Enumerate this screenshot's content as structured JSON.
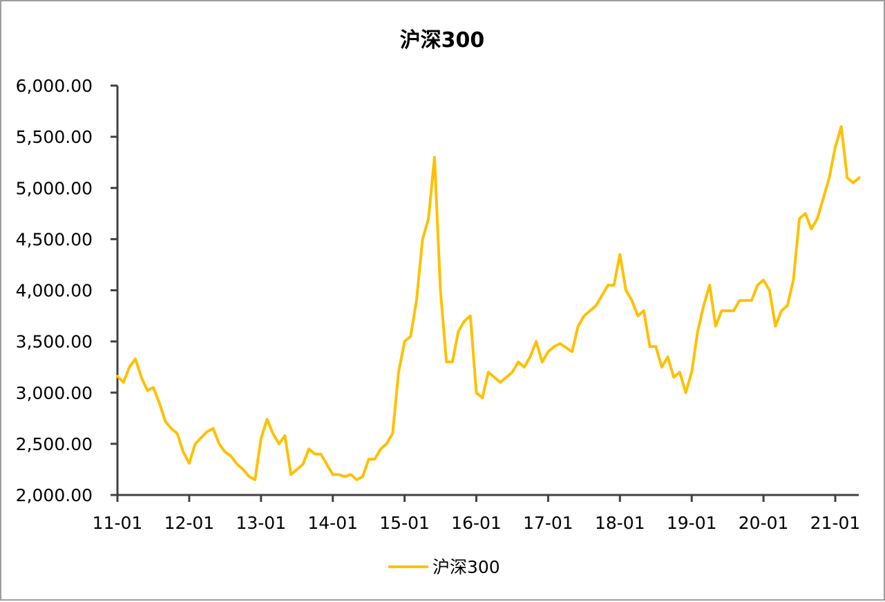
{
  "chart_data": {
    "type": "line",
    "title": "沪深300",
    "xlabel": "",
    "ylabel": "",
    "x_tick_labels": [
      "11-01",
      "12-01",
      "13-01",
      "14-01",
      "15-01",
      "16-01",
      "17-01",
      "18-01",
      "19-01",
      "20-01",
      "21-01"
    ],
    "y_tick_labels": [
      "2,000.00",
      "2,500.00",
      "3,000.00",
      "3,500.00",
      "4,000.00",
      "4,500.00",
      "5,000.00",
      "5,500.00",
      "6,000.00"
    ],
    "ylim": [
      2000,
      6000
    ],
    "xlim": [
      "2011-01",
      "2021-05"
    ],
    "grid": false,
    "legend_position": "bottom-center",
    "colors": {
      "series": "#FFC000",
      "axis": "#404040",
      "frame": "#7F7F7F"
    },
    "series": [
      {
        "name": "沪深300",
        "points": [
          [
            "2011-01",
            3160
          ],
          [
            "2011-02",
            3100
          ],
          [
            "2011-03",
            3250
          ],
          [
            "2011-04",
            3330
          ],
          [
            "2011-05",
            3150
          ],
          [
            "2011-06",
            3020
          ],
          [
            "2011-07",
            3050
          ],
          [
            "2011-08",
            2900
          ],
          [
            "2011-09",
            2720
          ],
          [
            "2011-10",
            2650
          ],
          [
            "2011-11",
            2600
          ],
          [
            "2011-12",
            2420
          ],
          [
            "2012-01",
            2310
          ],
          [
            "2012-02",
            2500
          ],
          [
            "2012-03",
            2560
          ],
          [
            "2012-04",
            2620
          ],
          [
            "2012-05",
            2650
          ],
          [
            "2012-06",
            2500
          ],
          [
            "2012-07",
            2420
          ],
          [
            "2012-08",
            2380
          ],
          [
            "2012-09",
            2300
          ],
          [
            "2012-10",
            2250
          ],
          [
            "2012-11",
            2180
          ],
          [
            "2012-12",
            2150
          ],
          [
            "2013-01",
            2550
          ],
          [
            "2013-02",
            2740
          ],
          [
            "2013-03",
            2600
          ],
          [
            "2013-04",
            2500
          ],
          [
            "2013-05",
            2580
          ],
          [
            "2013-06",
            2200
          ],
          [
            "2013-07",
            2250
          ],
          [
            "2013-08",
            2300
          ],
          [
            "2013-09",
            2450
          ],
          [
            "2013-10",
            2400
          ],
          [
            "2013-11",
            2400
          ],
          [
            "2013-12",
            2300
          ],
          [
            "2014-01",
            2200
          ],
          [
            "2014-02",
            2200
          ],
          [
            "2014-03",
            2180
          ],
          [
            "2014-04",
            2200
          ],
          [
            "2014-05",
            2150
          ],
          [
            "2014-06",
            2180
          ],
          [
            "2014-07",
            2350
          ],
          [
            "2014-08",
            2350
          ],
          [
            "2014-09",
            2450
          ],
          [
            "2014-10",
            2500
          ],
          [
            "2014-11",
            2600
          ],
          [
            "2014-12",
            3200
          ],
          [
            "2015-01",
            3500
          ],
          [
            "2015-02",
            3550
          ],
          [
            "2015-03",
            3900
          ],
          [
            "2015-04",
            4500
          ],
          [
            "2015-05",
            4700
          ],
          [
            "2015-06",
            5300
          ],
          [
            "2015-07",
            4000
          ],
          [
            "2015-08",
            3300
          ],
          [
            "2015-09",
            3300
          ],
          [
            "2015-10",
            3600
          ],
          [
            "2015-11",
            3700
          ],
          [
            "2015-12",
            3750
          ],
          [
            "2016-01",
            3000
          ],
          [
            "2016-02",
            2950
          ],
          [
            "2016-03",
            3200
          ],
          [
            "2016-04",
            3150
          ],
          [
            "2016-05",
            3100
          ],
          [
            "2016-06",
            3150
          ],
          [
            "2016-07",
            3200
          ],
          [
            "2016-08",
            3300
          ],
          [
            "2016-09",
            3250
          ],
          [
            "2016-10",
            3350
          ],
          [
            "2016-11",
            3500
          ],
          [
            "2016-12",
            3300
          ],
          [
            "2017-01",
            3400
          ],
          [
            "2017-02",
            3450
          ],
          [
            "2017-03",
            3480
          ],
          [
            "2017-04",
            3440
          ],
          [
            "2017-05",
            3400
          ],
          [
            "2017-06",
            3650
          ],
          [
            "2017-07",
            3750
          ],
          [
            "2017-08",
            3800
          ],
          [
            "2017-09",
            3850
          ],
          [
            "2017-10",
            3950
          ],
          [
            "2017-11",
            4050
          ],
          [
            "2017-12",
            4050
          ],
          [
            "2018-01",
            4350
          ],
          [
            "2018-02",
            4000
          ],
          [
            "2018-03",
            3900
          ],
          [
            "2018-04",
            3750
          ],
          [
            "2018-05",
            3800
          ],
          [
            "2018-06",
            3450
          ],
          [
            "2018-07",
            3450
          ],
          [
            "2018-08",
            3250
          ],
          [
            "2018-09",
            3350
          ],
          [
            "2018-10",
            3150
          ],
          [
            "2018-11",
            3200
          ],
          [
            "2018-12",
            3000
          ],
          [
            "2019-01",
            3200
          ],
          [
            "2019-02",
            3600
          ],
          [
            "2019-03",
            3850
          ],
          [
            "2019-04",
            4050
          ],
          [
            "2019-05",
            3650
          ],
          [
            "2019-06",
            3800
          ],
          [
            "2019-07",
            3800
          ],
          [
            "2019-08",
            3800
          ],
          [
            "2019-09",
            3900
          ],
          [
            "2019-10",
            3900
          ],
          [
            "2019-11",
            3900
          ],
          [
            "2019-12",
            4050
          ],
          [
            "2020-01",
            4100
          ],
          [
            "2020-02",
            4000
          ],
          [
            "2020-03",
            3650
          ],
          [
            "2020-04",
            3800
          ],
          [
            "2020-05",
            3850
          ],
          [
            "2020-06",
            4100
          ],
          [
            "2020-07",
            4700
          ],
          [
            "2020-08",
            4750
          ],
          [
            "2020-09",
            4600
          ],
          [
            "2020-10",
            4700
          ],
          [
            "2020-11",
            4900
          ],
          [
            "2020-12",
            5100
          ],
          [
            "2021-01",
            5400
          ],
          [
            "2021-02",
            5600
          ],
          [
            "2021-03",
            5100
          ],
          [
            "2021-04",
            5050
          ],
          [
            "2021-05",
            5100
          ]
        ]
      }
    ]
  }
}
